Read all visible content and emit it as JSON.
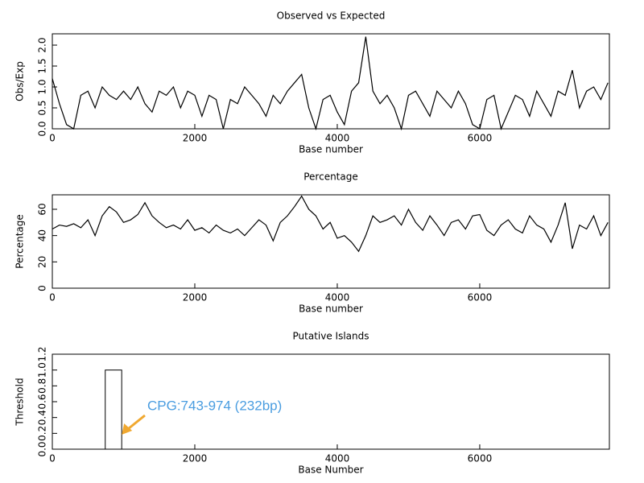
{
  "chart_data": [
    {
      "type": "line",
      "title": "Observed vs Expected",
      "xlabel": "Base number",
      "ylabel": "Obs/Exp",
      "xlim": [
        0,
        7820
      ],
      "xticks": [
        0,
        2000,
        4000,
        6000
      ],
      "ylim": [
        0,
        2.27
      ],
      "yticks": [
        {
          "value": 0,
          "label": "0.0"
        },
        0.5,
        {
          "value": 1,
          "label": "1.0"
        },
        1.5,
        {
          "value": 2,
          "label": "2.0"
        }
      ],
      "x": [
        0,
        100,
        200,
        300,
        400,
        500,
        600,
        700,
        800,
        900,
        1000,
        1100,
        1200,
        1300,
        1400,
        1500,
        1600,
        1700,
        1800,
        1900,
        2000,
        2100,
        2200,
        2300,
        2400,
        2500,
        2600,
        2700,
        2800,
        2900,
        3000,
        3100,
        3200,
        3300,
        3400,
        3500,
        3600,
        3700,
        3800,
        3900,
        4000,
        4100,
        4200,
        4300,
        4400,
        4500,
        4600,
        4700,
        4800,
        4900,
        5000,
        5100,
        5200,
        5300,
        5400,
        5500,
        5600,
        5700,
        5800,
        5900,
        6000,
        6100,
        6200,
        6300,
        6400,
        6500,
        6600,
        6700,
        6800,
        6900,
        7000,
        7100,
        7200,
        7300,
        7400,
        7500,
        7600,
        7700,
        7800
      ],
      "series": [
        {
          "color": "#000000",
          "values": [
            1.2,
            0.6,
            0.1,
            0.0,
            0.8,
            0.9,
            0.5,
            1.0,
            0.8,
            0.7,
            0.9,
            0.7,
            1.0,
            0.6,
            0.4,
            0.9,
            0.8,
            1.0,
            0.5,
            0.9,
            0.8,
            0.3,
            0.8,
            0.7,
            0.0,
            0.7,
            0.6,
            1.0,
            0.8,
            0.6,
            0.3,
            0.8,
            0.6,
            0.9,
            1.1,
            1.3,
            0.5,
            0.0,
            0.7,
            0.8,
            0.4,
            0.1,
            0.9,
            1.1,
            2.2,
            0.9,
            0.6,
            0.8,
            0.5,
            0.0,
            0.8,
            0.9,
            0.6,
            0.3,
            0.9,
            0.7,
            0.5,
            0.9,
            0.6,
            0.1,
            0.0,
            0.7,
            0.8,
            0.0,
            0.4,
            0.8,
            0.7,
            0.3,
            0.9,
            0.6,
            0.3,
            0.9,
            0.8,
            1.4,
            0.5,
            0.9,
            1.0,
            0.7,
            1.1
          ]
        }
      ]
    },
    {
      "type": "line",
      "title": "Percentage",
      "xlabel": "Base number",
      "ylabel": "Percentage",
      "xlim": [
        0,
        7820
      ],
      "xticks": [
        0,
        2000,
        4000,
        6000
      ],
      "ylim": [
        0,
        71
      ],
      "yticks": [
        0,
        20,
        40,
        60
      ],
      "x": [
        0,
        100,
        200,
        300,
        400,
        500,
        600,
        700,
        800,
        900,
        1000,
        1100,
        1200,
        1300,
        1400,
        1500,
        1600,
        1700,
        1800,
        1900,
        2000,
        2100,
        2200,
        2300,
        2400,
        2500,
        2600,
        2700,
        2800,
        2900,
        3000,
        3100,
        3200,
        3300,
        3400,
        3500,
        3600,
        3700,
        3800,
        3900,
        4000,
        4100,
        4200,
        4300,
        4400,
        4500,
        4600,
        4700,
        4800,
        4900,
        5000,
        5100,
        5200,
        5300,
        5400,
        5500,
        5600,
        5700,
        5800,
        5900,
        6000,
        6100,
        6200,
        6300,
        6400,
        6500,
        6600,
        6700,
        6800,
        6900,
        7000,
        7100,
        7200,
        7300,
        7400,
        7500,
        7600,
        7700,
        7800
      ],
      "series": [
        {
          "color": "#000000",
          "values": [
            45,
            48,
            47,
            49,
            46,
            52,
            40,
            55,
            62,
            58,
            50,
            52,
            56,
            65,
            55,
            50,
            46,
            48,
            45,
            52,
            44,
            46,
            42,
            48,
            44,
            42,
            45,
            40,
            46,
            52,
            48,
            36,
            50,
            55,
            62,
            70,
            60,
            55,
            45,
            50,
            38,
            40,
            35,
            28,
            40,
            55,
            50,
            52,
            55,
            48,
            60,
            50,
            44,
            55,
            48,
            40,
            50,
            52,
            45,
            55,
            56,
            44,
            40,
            48,
            52,
            45,
            42,
            55,
            48,
            45,
            35,
            48,
            65,
            30,
            48,
            45,
            55,
            40,
            50
          ]
        }
      ]
    },
    {
      "type": "span",
      "title": "Putative Islands",
      "xlabel": "Base Number",
      "ylabel": "Threshold",
      "xlim": [
        0,
        7820
      ],
      "xticks": [
        0,
        2000,
        4000,
        6000
      ],
      "ylim": [
        0,
        1.2
      ],
      "yticks": [
        {
          "value": 0,
          "label": "0.0"
        },
        0.2,
        0.4,
        0.6,
        0.8,
        {
          "value": 1,
          "label": "1.0"
        },
        1.2
      ],
      "spans": [
        {
          "start": 743,
          "end": 974,
          "value": 1
        }
      ],
      "annotation": "CPG:743-974 (232bp)",
      "annotation_color": "#4a9de0",
      "arrow_color": "#f0a830"
    }
  ]
}
